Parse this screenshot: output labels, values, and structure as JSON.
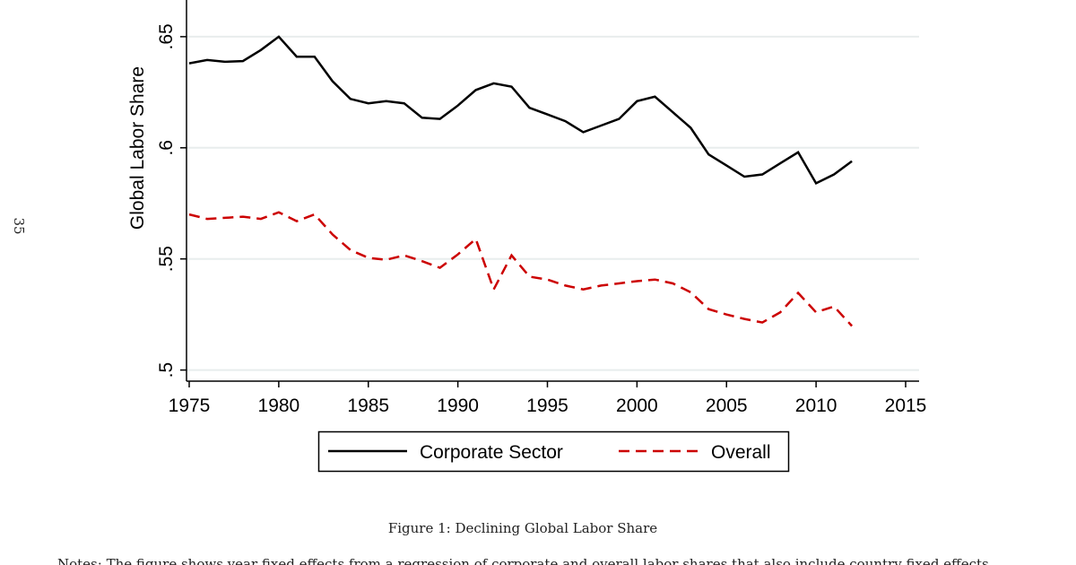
{
  "page_number": "35",
  "caption": "Figure 1: Declining Global Labor Share",
  "notes": "Notes: The figure shows year fixed effects from a regression of corporate and overall labor shares that also include country fixed effects.",
  "chart_data": {
    "type": "line",
    "title": "",
    "xlabel": "",
    "ylabel": "Global Labor Share",
    "xlim": [
      1975,
      2015
    ],
    "ylim": [
      0.495,
      0.6665
    ],
    "x_ticks": [
      1975,
      1980,
      1985,
      1990,
      1995,
      2000,
      2005,
      2010,
      2015
    ],
    "x_tick_labels": [
      "1975",
      "1980",
      "1985",
      "1990",
      "1995",
      "2000",
      "2005",
      "2010",
      "2015"
    ],
    "y_ticks": [
      0.5,
      0.55,
      0.6,
      0.65
    ],
    "y_tick_labels": [
      ".5",
      ".55",
      ".6",
      ".65"
    ],
    "grid": "horizontal",
    "legend_position": "bottom",
    "x": [
      1975,
      1976,
      1977,
      1978,
      1979,
      1980,
      1981,
      1982,
      1983,
      1984,
      1985,
      1986,
      1987,
      1988,
      1989,
      1990,
      1991,
      1992,
      1993,
      1994,
      1995,
      1996,
      1997,
      1998,
      1999,
      2000,
      2001,
      2002,
      2003,
      2004,
      2005,
      2006,
      2007,
      2008,
      2009,
      2010,
      2011,
      2012
    ],
    "series": [
      {
        "name": "Corporate Sector",
        "color": "#000000",
        "style": "solid",
        "values": [
          0.638,
          0.6395,
          0.6387,
          0.639,
          0.644,
          0.65,
          0.641,
          0.641,
          0.63,
          0.622,
          0.62,
          0.621,
          0.62,
          0.6135,
          0.613,
          0.619,
          0.626,
          0.629,
          0.6275,
          0.618,
          0.615,
          0.612,
          0.607,
          0.61,
          0.613,
          0.621,
          0.623,
          0.616,
          0.609,
          0.597,
          0.592,
          0.587,
          0.588,
          0.593,
          0.598,
          0.584,
          0.588,
          0.594
        ]
      },
      {
        "name": "Overall",
        "color": "#cc0000",
        "style": "dashed",
        "values": [
          0.57,
          0.568,
          0.5685,
          0.569,
          0.568,
          0.571,
          0.567,
          0.57,
          0.561,
          0.554,
          0.5505,
          0.5496,
          0.5516,
          0.549,
          0.546,
          0.552,
          0.559,
          0.5363,
          0.5516,
          0.542,
          0.5407,
          0.538,
          0.5363,
          0.538,
          0.539,
          0.54,
          0.5407,
          0.539,
          0.535,
          0.5274,
          0.525,
          0.523,
          0.5214,
          0.526,
          0.5347,
          0.526,
          0.5286,
          0.5198
        ]
      }
    ]
  }
}
